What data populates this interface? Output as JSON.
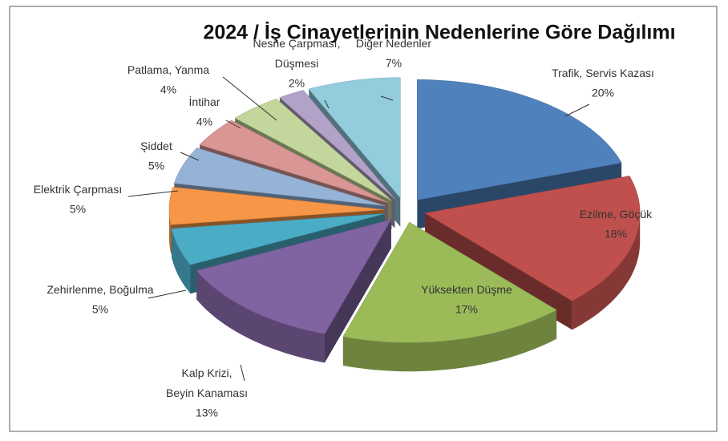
{
  "chart_data": {
    "type": "pie3d",
    "title": "2024 / İş Cinayetlerinin Nedenlerine Göre Dağılımı",
    "categories": [
      "Trafik, Servis Kazası",
      "Ezilme, Göçük",
      "Yüksekten Düşme",
      "Kalp Krizi,\nBeyin Kanaması",
      "Zehirlenme, Boğulma",
      "Elektrik Çarpması",
      "Şiddet",
      "İntihar",
      "Patlama, Yanma",
      "Nesne Çarpması,\nDüşmesi",
      "Diğer Nedenler"
    ],
    "values": [
      20,
      18,
      17,
      13,
      5,
      5,
      5,
      4,
      4,
      2,
      7
    ],
    "value_labels": [
      "20%",
      "18%",
      "17%",
      "13%",
      "5%",
      "5%",
      "5%",
      "4%",
      "4%",
      "2%",
      "7%"
    ],
    "colors": [
      "#4f81bd",
      "#c0504d",
      "#9bbb59",
      "#8064a2",
      "#4bacc6",
      "#f79646",
      "#95b3d7",
      "#d99694",
      "#c3d69b",
      "#b3a2c7",
      "#93cddd"
    ]
  }
}
